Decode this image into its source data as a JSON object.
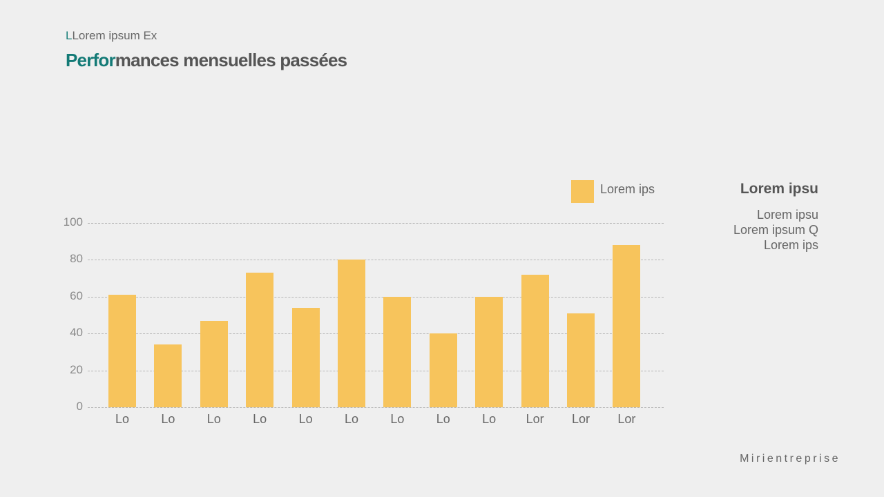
{
  "header": {
    "kicker_accent": "L",
    "kicker_rest": "Lorem ipsum Ex",
    "title_accent": "Perfor",
    "title_rest": "mances mensuelles passées"
  },
  "legend": {
    "label": "Lorem ips",
    "color": "#f7c45c"
  },
  "side_panel": {
    "heading": "Lorem ipsu",
    "lines": [
      "Lorem ipsu",
      "Lorem ipsum Q",
      "Lorem ips"
    ]
  },
  "footer": {
    "brand": "Mirientreprise"
  },
  "colors": {
    "bar": "#f7c45c",
    "accent": "#137a76",
    "background": "#efefef"
  },
  "chart_data": {
    "type": "bar",
    "title": "Performances mensuelles passées",
    "categories": [
      "Lo",
      "Lo",
      "Lo",
      "Lo",
      "Lo",
      "Lo",
      "Lo",
      "Lo",
      "Lo",
      "Lor",
      "Lor",
      "Lor"
    ],
    "series": [
      {
        "name": "Lorem ips",
        "values": [
          61,
          34,
          47,
          73,
          54,
          80,
          60,
          40,
          60,
          72,
          51,
          88
        ]
      }
    ],
    "yticks": [
      0,
      20,
      40,
      60,
      80,
      100
    ],
    "ylim": [
      0,
      100
    ],
    "xlabel": "",
    "ylabel": "",
    "grid": true,
    "legend_position": "top-right"
  }
}
